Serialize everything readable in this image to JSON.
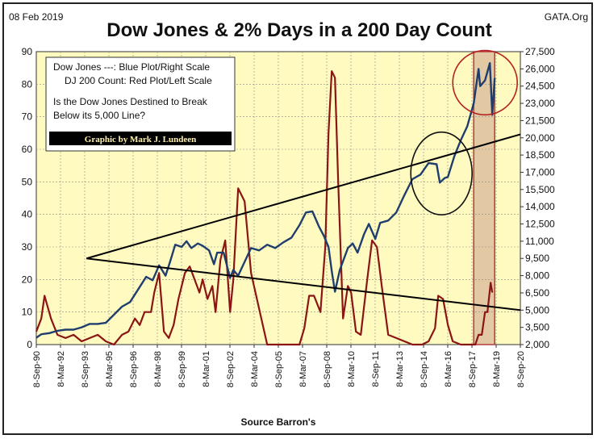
{
  "header": {
    "date": "08 Feb 2019",
    "title": "Dow Jones & 2% Days in a 200 Day Count",
    "source_site": "GATA.Org"
  },
  "legend": {
    "line1": "Dow Jones ---: Blue Plot/Right Scale",
    "line2": "DJ 200 Count: Red Plot/Left Scale",
    "line3": "Is the Dow Jones Destined to Break",
    "line4": "Below its 5,000 Line?",
    "credit": "Graphic by Mark J. Lundeen"
  },
  "footer": {
    "xlabel": "Source Barron's"
  },
  "colors": {
    "plot_bg": "#FFFBC0",
    "dow": "#1F3E6E",
    "count": "#8B1414",
    "shade": "#E2C9A4",
    "shade_border": "#B23A3A",
    "circle_black": "#111111",
    "circle_red": "#B22222"
  },
  "chart_data": {
    "type": "line",
    "title": "Dow Jones & 2% Days in a 200 Day Count",
    "xlabel": "Source Barron's",
    "x_ticks": [
      "8-Sep-90",
      "8-Mar-92",
      "8-Sep-93",
      "8-Mar-95",
      "8-Sep-96",
      "8-Mar-98",
      "8-Sep-99",
      "8-Mar-01",
      "8-Sep-02",
      "8-Mar-04",
      "8-Sep-05",
      "8-Mar-07",
      "8-Sep-08",
      "8-Mar-10",
      "8-Sep-11",
      "8-Mar-13",
      "8-Sep-14",
      "8-Mar-16",
      "8-Sep-17",
      "8-Mar-19",
      "8-Sep-20"
    ],
    "xlim": [
      1990.69,
      2020.69
    ],
    "left_axis": {
      "ylim": [
        0,
        90
      ],
      "ticks": [
        0,
        10,
        20,
        30,
        40,
        50,
        60,
        70,
        80,
        90
      ]
    },
    "right_axis": {
      "ylim": [
        2000,
        27500
      ],
      "ticks": [
        "2,000",
        "3,500",
        "5,000",
        "6,500",
        "8,000",
        "9,500",
        "11,000",
        "12,500",
        "14,000",
        "15,500",
        "17,000",
        "18,500",
        "20,000",
        "21,500",
        "23,000",
        "24,500",
        "26,000",
        "27,500"
      ],
      "tick_values": [
        2000,
        3500,
        5000,
        6500,
        8000,
        9500,
        11000,
        12500,
        14000,
        15500,
        17000,
        18500,
        20000,
        21500,
        23000,
        24500,
        26000,
        27500
      ]
    },
    "shaded_period": [
      2017.8,
      2019.1
    ],
    "series": [
      {
        "name": "Dow Jones",
        "axis": "right",
        "x": [
          1990.69,
          1991.0,
          1991.5,
          1992.0,
          1992.5,
          1993.0,
          1993.5,
          1994.0,
          1994.5,
          1995.0,
          1995.5,
          1996.0,
          1996.5,
          1997.0,
          1997.5,
          1997.9,
          1998.3,
          1998.7,
          1999.0,
          1999.3,
          1999.7,
          2000.0,
          2000.3,
          2000.7,
          2001.0,
          2001.4,
          2001.7,
          2001.9,
          2002.3,
          2002.7,
          2002.9,
          2003.2,
          2003.6,
          2004.0,
          2004.5,
          2005.0,
          2005.5,
          2006.0,
          2006.5,
          2007.0,
          2007.4,
          2007.8,
          2008.2,
          2008.5,
          2008.8,
          2009.0,
          2009.2,
          2009.5,
          2010.0,
          2010.3,
          2010.6,
          2011.0,
          2011.3,
          2011.7,
          2012.0,
          2012.5,
          2013.0,
          2013.5,
          2014.0,
          2014.5,
          2015.0,
          2015.5,
          2015.7,
          2016.0,
          2016.2,
          2016.6,
          2017.0,
          2017.4,
          2017.8,
          2018.1,
          2018.2,
          2018.5,
          2018.8,
          2018.95,
          2019.1
        ],
        "y": [
          2600,
          2900,
          3000,
          3200,
          3300,
          3300,
          3500,
          3800,
          3800,
          3900,
          4600,
          5300,
          5700,
          6800,
          7900,
          7600,
          8900,
          8000,
          9300,
          10700,
          10500,
          11000,
          10400,
          10800,
          10600,
          10200,
          9000,
          10000,
          10000,
          7800,
          8500,
          8000,
          9200,
          10400,
          10200,
          10700,
          10400,
          10900,
          11300,
          12400,
          13500,
          13600,
          12300,
          11500,
          10500,
          8400,
          6600,
          8500,
          10400,
          10800,
          10000,
          11600,
          12500,
          11200,
          12600,
          12800,
          13500,
          15000,
          16400,
          16800,
          17800,
          17700,
          16100,
          16500,
          16600,
          18400,
          19800,
          21000,
          23000,
          26000,
          24500,
          25000,
          26500,
          22000,
          25200
        ]
      },
      {
        "name": "DJ 200 Count",
        "axis": "left",
        "x": [
          1990.69,
          1991.0,
          1991.2,
          1991.6,
          1992.0,
          1992.5,
          1993.0,
          1993.5,
          1994.0,
          1994.5,
          1995.0,
          1995.5,
          1996.0,
          1996.4,
          1996.8,
          1997.1,
          1997.4,
          1997.8,
          1998.0,
          1998.3,
          1998.6,
          1998.9,
          1999.2,
          1999.5,
          1999.9,
          2000.2,
          2000.5,
          2000.8,
          2001.0,
          2001.3,
          2001.6,
          2001.8,
          2002.1,
          2002.4,
          2002.7,
          2002.9,
          2003.2,
          2003.6,
          2004.0,
          2005.0,
          2006.0,
          2006.3,
          2007.0,
          2007.3,
          2007.6,
          2007.9,
          2008.3,
          2008.6,
          2008.8,
          2009.0,
          2009.2,
          2009.4,
          2009.7,
          2010.0,
          2010.2,
          2010.5,
          2010.8,
          2011.2,
          2011.5,
          2011.8,
          2012.1,
          2012.5,
          2013.0,
          2014.0,
          2014.6,
          2015.0,
          2015.4,
          2015.6,
          2015.9,
          2016.2,
          2016.5,
          2017.0,
          2017.5,
          2017.9,
          2018.1,
          2018.3,
          2018.5,
          2018.65,
          2018.85,
          2018.95
        ],
        "y": [
          4,
          8,
          15,
          8,
          3,
          2,
          3,
          1,
          2,
          3,
          1,
          0,
          3,
          4,
          8,
          6,
          10,
          10,
          16,
          22,
          4,
          2,
          6,
          14,
          22,
          24,
          20,
          16,
          20,
          14,
          18,
          10,
          26,
          32,
          10,
          20,
          48,
          44,
          22,
          0,
          0,
          0,
          0,
          5,
          15,
          15,
          10,
          30,
          65,
          84,
          82,
          50,
          8,
          18,
          16,
          4,
          3,
          20,
          32,
          30,
          18,
          3,
          2,
          0,
          0,
          1,
          5,
          15,
          14,
          6,
          1,
          0,
          0,
          0,
          3,
          3,
          10,
          10,
          19,
          16
        ]
      }
    ],
    "trendlines": [
      {
        "name": "upper",
        "x": [
          1993.8,
          2020.69
        ],
        "y_right": [
          9500,
          20300
        ]
      },
      {
        "name": "lower",
        "x": [
          1993.8,
          2020.69
        ],
        "y_right": [
          9500,
          5000
        ]
      }
    ],
    "circles": [
      {
        "color": "black",
        "center_x": 2015.8,
        "center_right": 16900,
        "rx_years": 1.9,
        "ry_right": 3600
      },
      {
        "color": "red",
        "center_x": 2018.5,
        "center_right": 24800,
        "rx_years": 2.0,
        "ry_right": 2800
      }
    ]
  }
}
